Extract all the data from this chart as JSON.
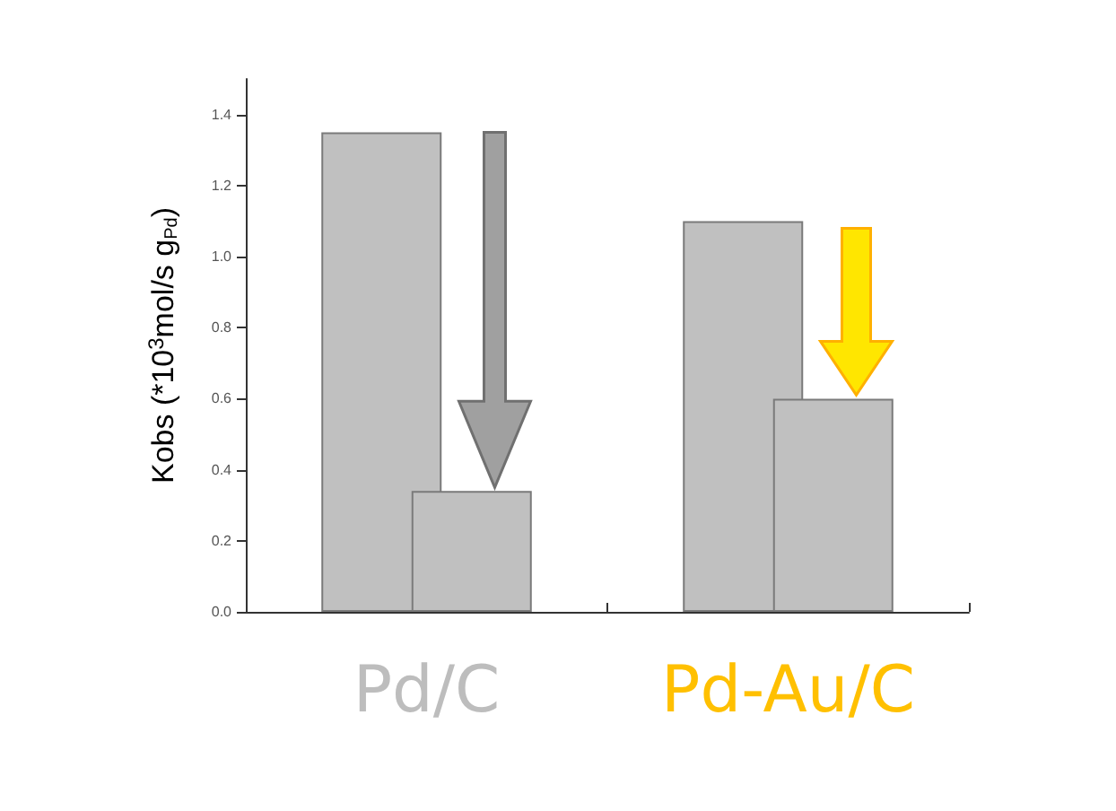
{
  "chart_data": {
    "type": "bar",
    "ylabel": "Kobs (*10$^{3}$mol/s g$_{Pd}$)",
    "categories": [
      "Pd/C",
      "Pd-Au/C"
    ],
    "series": [
      {
        "color": "#c0c0c0",
        "values": [
          1.35,
          1.1
        ]
      },
      {
        "color": "#c0c0c0",
        "values": [
          0.34,
          0.6
        ]
      }
    ],
    "ylim": [
      0,
      1.5
    ],
    "yticks": [
      {
        "value": 0,
        "label": "0.0"
      },
      {
        "value": 0.2,
        "label": "0.2"
      },
      {
        "value": 0.4,
        "label": "0.4"
      },
      {
        "value": 0.6,
        "label": "0.6"
      },
      {
        "value": 0.8,
        "label": "0.8"
      },
      {
        "value": 1.0,
        "label": "1.0"
      },
      {
        "value": 1.2,
        "label": "1.2"
      },
      {
        "value": 1.4,
        "label": "1.4"
      }
    ],
    "grid": false
  }
}
